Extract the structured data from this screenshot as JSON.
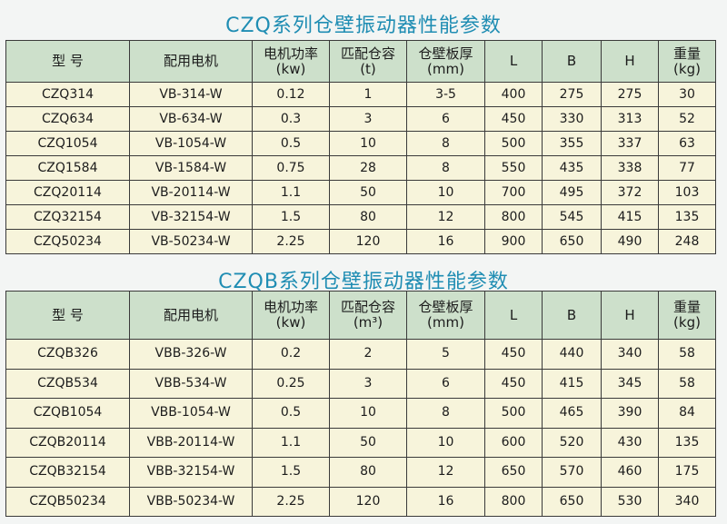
{
  "table1": {
    "title": "CZQ系列仓壁振动器性能参数",
    "headers": [
      "型 号",
      "配用电机",
      "电机功率\n(kw)",
      "匹配仓容\n(t)",
      "仓壁板厚\n(mm)",
      "L",
      "B",
      "H",
      "重量\n(kg)"
    ],
    "rows": [
      [
        "CZQ314",
        "VB-314-W",
        "0.12",
        "1",
        "3-5",
        "400",
        "275",
        "275",
        "30"
      ],
      [
        "CZQ634",
        "VB-634-W",
        "0.3",
        "3",
        "6",
        "450",
        "330",
        "313",
        "52"
      ],
      [
        "CZQ1054",
        "VB-1054-W",
        "0.5",
        "10",
        "8",
        "500",
        "355",
        "337",
        "63"
      ],
      [
        "CZQ1584",
        "VB-1584-W",
        "0.75",
        "28",
        "8",
        "550",
        "435",
        "338",
        "77"
      ],
      [
        "CZQ20114",
        "VB-20114-W",
        "1.1",
        "50",
        "10",
        "700",
        "495",
        "372",
        "103"
      ],
      [
        "CZQ32154",
        "VB-32154-W",
        "1.5",
        "80",
        "12",
        "800",
        "545",
        "415",
        "135"
      ],
      [
        "CZQ50234",
        "VB-50234-W",
        "2.25",
        "120",
        "16",
        "900",
        "650",
        "490",
        "248"
      ]
    ]
  },
  "table2": {
    "title": "CZQB系列仓壁振动器性能参数",
    "headers": [
      "型 号",
      "配用电机",
      "电机功率\n(kw)",
      "匹配仓容\n(m³)",
      "仓壁板厚\n(mm)",
      "L",
      "B",
      "H",
      "重量\n(kg)"
    ],
    "rows": [
      [
        "CZQB326",
        "VBB-326-W",
        "0.2",
        "2",
        "5",
        "450",
        "440",
        "340",
        "58"
      ],
      [
        "CZQB534",
        "VBB-534-W",
        "0.25",
        "3",
        "6",
        "450",
        "415",
        "345",
        "58"
      ],
      [
        "CZQB1054",
        "VBB-1054-W",
        "0.5",
        "10",
        "8",
        "500",
        "465",
        "390",
        "84"
      ],
      [
        "CZQB20114",
        "VBB-20114-W",
        "1.1",
        "50",
        "10",
        "600",
        "520",
        "430",
        "135"
      ],
      [
        "CZQB32154",
        "VBB-32154-W",
        "1.5",
        "80",
        "12",
        "650",
        "570",
        "460",
        "175"
      ],
      [
        "CZQB50234",
        "VBB-50234-W",
        "2.25",
        "120",
        "16",
        "800",
        "650",
        "530",
        "340"
      ]
    ]
  }
}
